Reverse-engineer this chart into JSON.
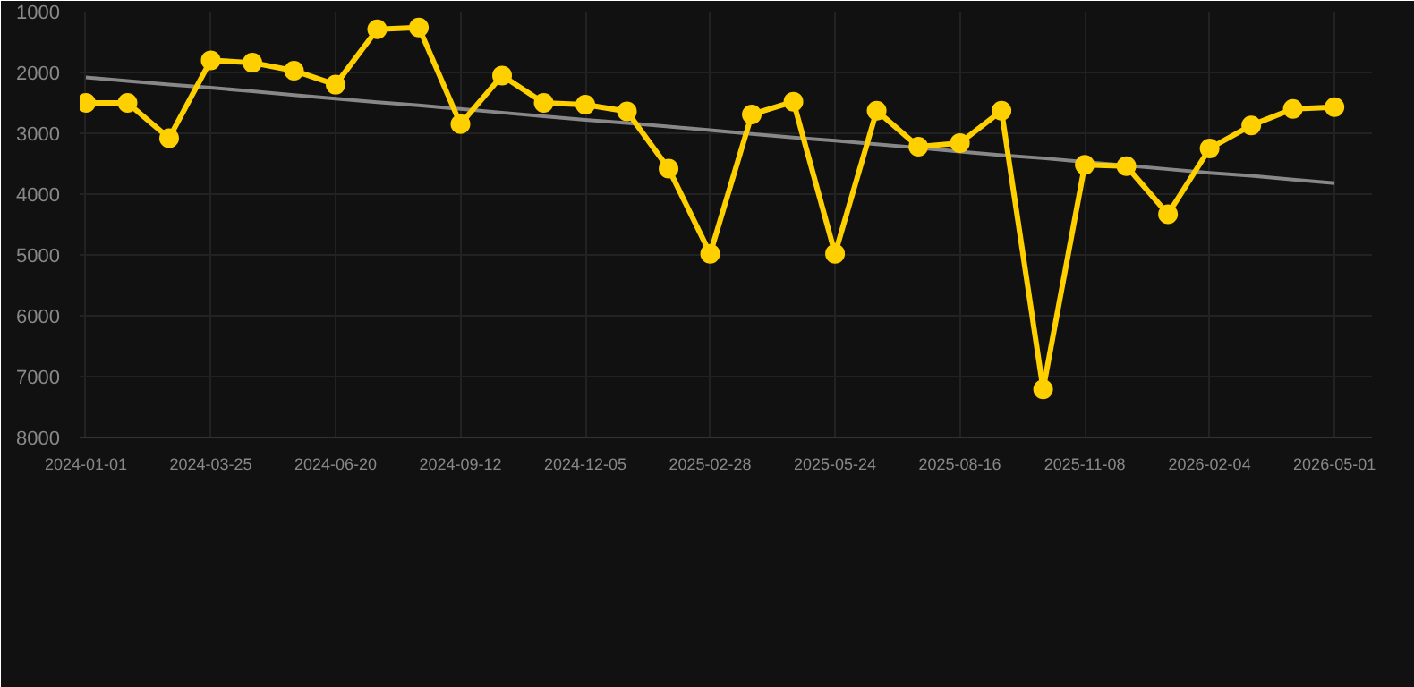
{
  "chart_data": {
    "type": "line",
    "categories": [
      "2024-01-01",
      null,
      null,
      "2024-03-25",
      null,
      null,
      "2024-06-20",
      null,
      null,
      "2024-09-12",
      null,
      null,
      "2024-12-05",
      null,
      null,
      "2025-02-28",
      null,
      null,
      "2025-05-24",
      null,
      null,
      "2025-08-16",
      null,
      null,
      "2025-11-08",
      null,
      null,
      "2026-02-04",
      null,
      null,
      "2026-05-01"
    ],
    "series": [
      {
        "color": "#ffd000",
        "marker": "circle",
        "values": [
          2500,
          2500,
          3080,
          1800,
          1840,
          1970,
          2200,
          1290,
          1260,
          2850,
          2050,
          2500,
          2530,
          2640,
          3580,
          4980,
          2690,
          2480,
          4980,
          2630,
          3220,
          3160,
          2630,
          7210,
          3520,
          3540,
          4330,
          3250,
          2870,
          2600,
          2570
        ]
      },
      {
        "type": "line",
        "color": "#888888",
        "marker": "none",
        "values": [
          2080,
          2140,
          2200,
          2250,
          2310,
          2370,
          2430,
          2490,
          2540,
          2600,
          2660,
          2720,
          2780,
          2830,
          2890,
          2950,
          3010,
          3070,
          3120,
          3180,
          3240,
          3300,
          3360,
          3410,
          3470,
          3530,
          3590,
          3650,
          3700,
          3760,
          3820
        ]
      }
    ],
    "ylim": [
      8000,
      1000
    ],
    "yticks": [
      1000,
      2000,
      3000,
      4000,
      5000,
      6000,
      7000,
      8000
    ],
    "grid": true
  }
}
